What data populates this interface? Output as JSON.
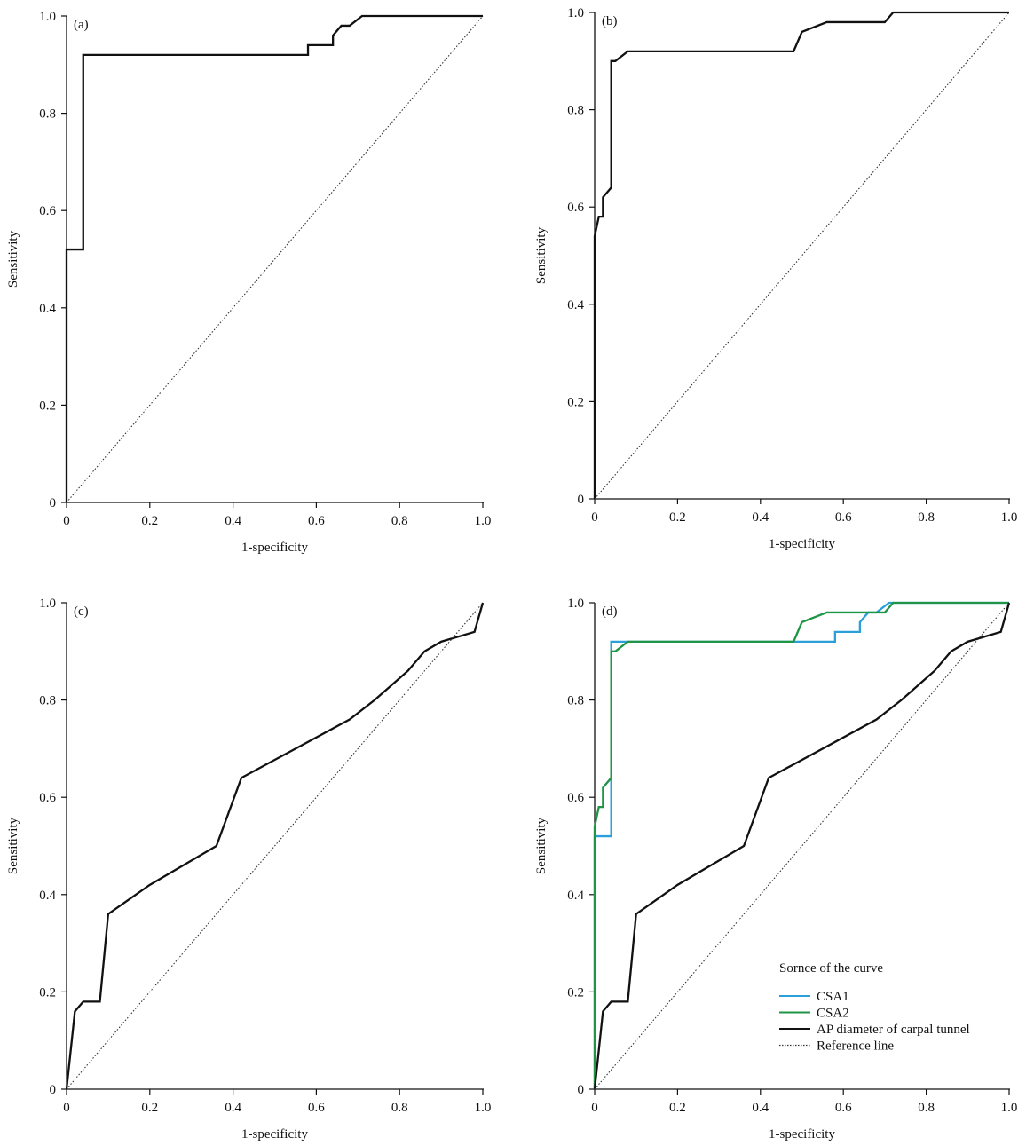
{
  "colors": {
    "csa1": "#2a9fd8",
    "csa2": "#1e9646",
    "ap": "#111111",
    "reference": "#333333"
  },
  "chart_data": [
    {
      "type": "line",
      "panel_label": "(a)",
      "xlabel": "1-specificity",
      "ylabel": "Sensitivity",
      "xlim": [
        0,
        1.0
      ],
      "ylim": [
        0,
        1.0
      ],
      "xticks": [
        "0",
        "0.2",
        "0.4",
        "0.6",
        "0.8",
        "1.0"
      ],
      "yticks": [
        "0",
        "0.2",
        "0.4",
        "0.6",
        "0.8",
        "1.0"
      ],
      "grid": false,
      "series": [
        {
          "color_key": "ap",
          "style": "solid",
          "x": [
            0,
            0,
            0.04,
            0.04,
            0.58,
            0.58,
            0.64,
            0.64,
            0.66,
            0.68,
            0.71,
            1.0
          ],
          "y": [
            0,
            0.52,
            0.52,
            0.92,
            0.92,
            0.94,
            0.94,
            0.96,
            0.98,
            0.98,
            1.0,
            1.0
          ]
        },
        {
          "color_key": "reference",
          "style": "dotted",
          "x": [
            0,
            1.0
          ],
          "y": [
            0,
            1.0
          ]
        }
      ]
    },
    {
      "type": "line",
      "panel_label": "(b)",
      "xlabel": "1-specificity",
      "ylabel": "Sensitivity",
      "xlim": [
        0,
        1.0
      ],
      "ylim": [
        0,
        1.0
      ],
      "xticks": [
        "0",
        "0.2",
        "0.4",
        "0.6",
        "0.8",
        "1.0"
      ],
      "yticks": [
        "0",
        "0.2",
        "0.4",
        "0.6",
        "0.8",
        "1.0"
      ],
      "grid": false,
      "series": [
        {
          "color_key": "ap",
          "style": "solid",
          "x": [
            0,
            0,
            0.01,
            0.02,
            0.02,
            0.04,
            0.04,
            0.05,
            0.08,
            0.48,
            0.5,
            0.56,
            0.7,
            0.72,
            1.0
          ],
          "y": [
            0,
            0.54,
            0.58,
            0.58,
            0.62,
            0.64,
            0.9,
            0.9,
            0.92,
            0.92,
            0.96,
            0.98,
            0.98,
            1.0,
            1.0
          ]
        },
        {
          "color_key": "reference",
          "style": "dotted",
          "x": [
            0,
            1.0
          ],
          "y": [
            0,
            1.0
          ]
        }
      ]
    },
    {
      "type": "line",
      "panel_label": "(c)",
      "xlabel": "1-specificity",
      "ylabel": "Sensitivity",
      "xlim": [
        0,
        1.0
      ],
      "ylim": [
        0,
        1.0
      ],
      "xticks": [
        "0",
        "0.2",
        "0.4",
        "0.6",
        "0.8",
        "1.0"
      ],
      "yticks": [
        "0",
        "0.2",
        "0.4",
        "0.6",
        "0.8",
        "1.0"
      ],
      "grid": false,
      "series": [
        {
          "color_key": "ap",
          "style": "solid",
          "x": [
            0,
            0.02,
            0.04,
            0.08,
            0.1,
            0.2,
            0.36,
            0.42,
            0.68,
            0.74,
            0.82,
            0.86,
            0.9,
            0.98,
            1.0
          ],
          "y": [
            0,
            0.16,
            0.18,
            0.18,
            0.36,
            0.42,
            0.5,
            0.64,
            0.76,
            0.8,
            0.86,
            0.9,
            0.92,
            0.94,
            1.0
          ]
        },
        {
          "color_key": "reference",
          "style": "dotted",
          "x": [
            0,
            1.0
          ],
          "y": [
            0,
            1.0
          ]
        }
      ]
    },
    {
      "type": "line",
      "panel_label": "(d)",
      "xlabel": "1-specificity",
      "ylabel": "Sensitivity",
      "xlim": [
        0,
        1.0
      ],
      "ylim": [
        0,
        1.0
      ],
      "xticks": [
        "0",
        "0.2",
        "0.4",
        "0.6",
        "0.8",
        "1.0"
      ],
      "yticks": [
        "0",
        "0.2",
        "0.4",
        "0.6",
        "0.8",
        "1.0"
      ],
      "grid": false,
      "legend_title": "Sornce of the curve",
      "legend_position": "bottom-right",
      "series": [
        {
          "name": "CSA1",
          "color_key": "csa1",
          "style": "solid",
          "x": [
            0,
            0,
            0.04,
            0.04,
            0.58,
            0.58,
            0.64,
            0.64,
            0.66,
            0.68,
            0.71,
            1.0
          ],
          "y": [
            0,
            0.52,
            0.52,
            0.92,
            0.92,
            0.94,
            0.94,
            0.96,
            0.98,
            0.98,
            1.0,
            1.0
          ]
        },
        {
          "name": "CSA2",
          "color_key": "csa2",
          "style": "solid",
          "x": [
            0,
            0,
            0.01,
            0.02,
            0.02,
            0.04,
            0.04,
            0.05,
            0.08,
            0.48,
            0.5,
            0.56,
            0.7,
            0.72,
            1.0
          ],
          "y": [
            0,
            0.54,
            0.58,
            0.58,
            0.62,
            0.64,
            0.9,
            0.9,
            0.92,
            0.92,
            0.96,
            0.98,
            0.98,
            1.0,
            1.0
          ]
        },
        {
          "name": "AP diameter of carpal tunnel",
          "color_key": "ap",
          "style": "solid",
          "x": [
            0,
            0.02,
            0.04,
            0.08,
            0.1,
            0.2,
            0.36,
            0.42,
            0.68,
            0.74,
            0.82,
            0.86,
            0.9,
            0.98,
            1.0
          ],
          "y": [
            0,
            0.16,
            0.18,
            0.18,
            0.36,
            0.42,
            0.5,
            0.64,
            0.76,
            0.8,
            0.86,
            0.9,
            0.92,
            0.94,
            1.0
          ]
        },
        {
          "name": "Reference line",
          "color_key": "reference",
          "style": "dotted",
          "x": [
            0,
            1.0
          ],
          "y": [
            0,
            1.0
          ]
        }
      ]
    }
  ]
}
